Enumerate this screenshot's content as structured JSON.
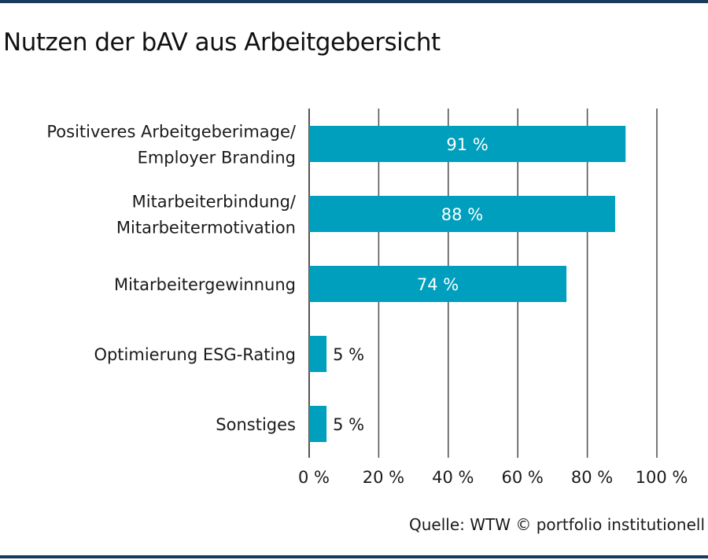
{
  "title": "Nutzen der bAV aus Arbeitgebersicht",
  "source": "Quelle: WTW © portfolio institutionell",
  "colors": {
    "bar": "#009fbd",
    "rule": "#173a5e",
    "grid": "#555555"
  },
  "chart_data": {
    "type": "bar",
    "orientation": "horizontal",
    "title": "Nutzen der bAV aus Arbeitgebersicht",
    "categories": [
      [
        "Positiveres Arbeitgeberimage/",
        "Employer Branding"
      ],
      [
        "Mitarbeiterbindung/",
        "Mitarbeitermotivation"
      ],
      [
        "Mitarbeitergewinnung"
      ],
      [
        "Optimierung ESG-Rating"
      ],
      [
        "Sonstiges"
      ]
    ],
    "values": [
      91,
      88,
      74,
      5,
      5
    ],
    "value_labels": [
      "91 %",
      "88 %",
      "74 %",
      "5 %",
      "5 %"
    ],
    "xlim": [
      0,
      100
    ],
    "xticks": [
      0,
      20,
      40,
      60,
      80,
      100
    ],
    "xtick_labels": [
      "0 %",
      "20 %",
      "40 %",
      "60 %",
      "80 %",
      "100 %"
    ],
    "xlabel": "",
    "ylabel": "",
    "grid": true,
    "legend": "none"
  }
}
